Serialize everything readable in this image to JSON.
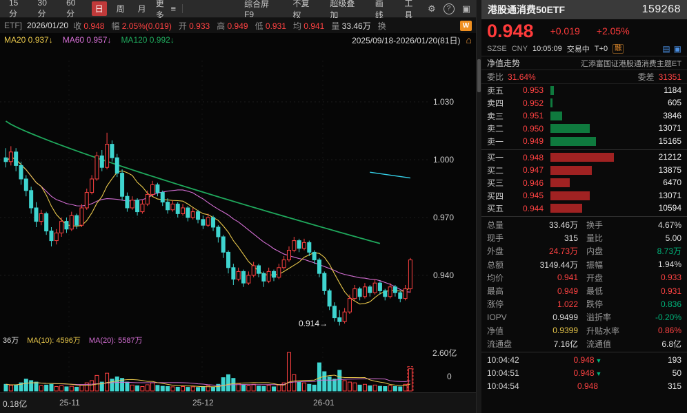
{
  "colors": {
    "up": "#ff4242",
    "down": "#3fd4cf",
    "panel_down": "#00b37a",
    "yellow": "#e9c84b",
    "magenta": "#d56fd5",
    "green_line": "#1fa85c",
    "cyan_overlay": "#35d0e8",
    "bar_sell": "#0f7a3e",
    "bar_buy": "#a02222"
  },
  "toolbar": {
    "period_tabs": [
      {
        "label": "15分",
        "active": false
      },
      {
        "label": "30分",
        "active": false
      },
      {
        "label": "60分",
        "active": false
      },
      {
        "label": "日",
        "active": true
      },
      {
        "label": "周",
        "active": false
      },
      {
        "label": "月",
        "active": false
      }
    ],
    "more_label": "更多",
    "menu_items": [
      "综合屏 F9",
      "不复权",
      "超级叠加",
      "画线",
      "工具"
    ]
  },
  "price_line": {
    "prefix": "ETF]",
    "date": "2026/01/20",
    "fields": [
      {
        "label": "收",
        "value": "0.948",
        "cls": "up"
      },
      {
        "label": "幅",
        "value": "2.05%(0.019)",
        "cls": "up"
      },
      {
        "label": "开",
        "value": "0.933",
        "cls": "up"
      },
      {
        "label": "高",
        "value": "0.949",
        "cls": "up"
      },
      {
        "label": "低",
        "value": "0.931",
        "cls": "up"
      },
      {
        "label": "均",
        "value": "0.941",
        "cls": "up"
      },
      {
        "label": "量",
        "value": "33.46万",
        "cls": "flat"
      },
      {
        "label": "换",
        "value": "",
        "cls": "flat"
      }
    ],
    "wp_badge": "W"
  },
  "ma_line": {
    "items": [
      {
        "label": "MA20",
        "value": "0.937↓",
        "color": "#e9c84b"
      },
      {
        "label": "MA60",
        "value": "0.957↓",
        "color": "#d56fd5"
      },
      {
        "label": "MA120",
        "value": "0.992↓",
        "color": "#1fa85c"
      }
    ],
    "range": "2025/09/18-2026/01/20(81日)"
  },
  "chart_data": {
    "type": "candlestick",
    "symbol": "港股通消费50ETF 159268",
    "date_range": "2025/09/18-2026/01/20",
    "num_days": 81,
    "y_ticks": [
      1.03,
      1.0,
      0.97,
      0.94
    ],
    "low_label": "0.914→",
    "candles": [
      [
        1.001,
        1.006,
        0.996,
        0.999
      ],
      [
        0.999,
        1.007,
        0.997,
        1.004
      ],
      [
        1.004,
        1.006,
        0.994,
        0.997
      ],
      [
        0.997,
        0.999,
        0.987,
        0.99
      ],
      [
        0.99,
        0.992,
        0.981,
        0.984
      ],
      [
        0.984,
        0.986,
        0.972,
        0.975
      ],
      [
        0.975,
        0.978,
        0.965,
        0.968
      ],
      [
        0.968,
        0.974,
        0.966,
        0.972
      ],
      [
        0.972,
        0.973,
        0.961,
        0.963
      ],
      [
        0.963,
        0.965,
        0.955,
        0.958
      ],
      [
        0.958,
        0.964,
        0.956,
        0.962
      ],
      [
        0.962,
        0.97,
        0.96,
        0.968
      ],
      [
        0.968,
        0.97,
        0.962,
        0.964
      ],
      [
        0.964,
        0.973,
        0.963,
        0.971
      ],
      [
        0.971,
        0.972,
        0.964,
        0.966
      ],
      [
        0.966,
        0.977,
        0.965,
        0.975
      ],
      [
        0.975,
        0.985,
        0.974,
        0.983
      ],
      [
        0.983,
        0.992,
        0.982,
        0.99
      ],
      [
        0.99,
        1.004,
        0.989,
        1.002
      ],
      [
        1.002,
        1.005,
        0.994,
        0.996
      ],
      [
        0.996,
        1.014,
        0.995,
        1.008
      ],
      [
        1.008,
        1.01,
        0.999,
        1.001
      ],
      [
        1.001,
        1.003,
        0.991,
        0.993
      ],
      [
        0.993,
        0.995,
        0.979,
        0.981
      ],
      [
        0.981,
        0.983,
        0.973,
        0.975
      ],
      [
        0.975,
        0.981,
        0.974,
        0.979
      ],
      [
        0.979,
        0.98,
        0.971,
        0.973
      ],
      [
        0.973,
        0.979,
        0.972,
        0.977
      ],
      [
        0.977,
        0.984,
        0.976,
        0.982
      ],
      [
        0.982,
        0.989,
        0.981,
        0.987
      ],
      [
        0.987,
        0.988,
        0.981,
        0.983
      ],
      [
        0.983,
        0.984,
        0.976,
        0.978
      ],
      [
        0.978,
        0.98,
        0.972,
        0.974
      ],
      [
        0.974,
        0.979,
        0.973,
        0.977
      ],
      [
        0.977,
        0.978,
        0.97,
        0.972
      ],
      [
        0.972,
        0.977,
        0.971,
        0.975
      ],
      [
        0.975,
        0.976,
        0.968,
        0.97
      ],
      [
        0.97,
        0.975,
        0.969,
        0.973
      ],
      [
        0.973,
        0.974,
        0.967,
        0.969
      ],
      [
        0.969,
        0.971,
        0.964,
        0.966
      ],
      [
        0.966,
        0.972,
        0.965,
        0.97
      ],
      [
        0.97,
        0.971,
        0.963,
        0.965
      ],
      [
        0.965,
        0.966,
        0.957,
        0.96
      ],
      [
        0.96,
        0.961,
        0.949,
        0.952
      ],
      [
        0.952,
        0.953,
        0.941,
        0.944
      ],
      [
        0.944,
        0.946,
        0.935,
        0.938
      ],
      [
        0.938,
        0.944,
        0.937,
        0.942
      ],
      [
        0.942,
        0.943,
        0.934,
        0.936
      ],
      [
        0.936,
        0.942,
        0.935,
        0.94
      ],
      [
        0.94,
        0.947,
        0.939,
        0.945
      ],
      [
        0.945,
        0.946,
        0.939,
        0.941
      ],
      [
        0.941,
        0.942,
        0.934,
        0.937
      ],
      [
        0.937,
        0.944,
        0.936,
        0.942
      ],
      [
        0.942,
        0.943,
        0.937,
        0.939
      ],
      [
        0.939,
        0.946,
        0.938,
        0.944
      ],
      [
        0.944,
        0.95,
        0.943,
        0.948
      ],
      [
        0.948,
        0.955,
        0.947,
        0.953
      ],
      [
        0.953,
        0.96,
        0.952,
        0.958
      ],
      [
        0.958,
        0.959,
        0.952,
        0.954
      ],
      [
        0.954,
        0.959,
        0.953,
        0.957
      ],
      [
        0.957,
        0.958,
        0.95,
        0.952
      ],
      [
        0.952,
        0.953,
        0.946,
        0.948
      ],
      [
        0.948,
        0.949,
        0.939,
        0.941
      ],
      [
        0.941,
        0.942,
        0.93,
        0.932
      ],
      [
        0.932,
        0.933,
        0.922,
        0.924
      ],
      [
        0.924,
        0.926,
        0.916,
        0.918
      ],
      [
        0.918,
        0.922,
        0.914,
        0.916
      ],
      [
        0.916,
        0.923,
        0.915,
        0.921
      ],
      [
        0.921,
        0.93,
        0.92,
        0.928
      ],
      [
        0.928,
        0.935,
        0.927,
        0.933
      ],
      [
        0.933,
        0.934,
        0.927,
        0.929
      ],
      [
        0.929,
        0.936,
        0.928,
        0.934
      ],
      [
        0.934,
        0.935,
        0.929,
        0.931
      ],
      [
        0.931,
        0.938,
        0.93,
        0.936
      ],
      [
        0.936,
        0.937,
        0.93,
        0.932
      ],
      [
        0.932,
        0.933,
        0.927,
        0.929
      ],
      [
        0.929,
        0.936,
        0.928,
        0.934
      ],
      [
        0.934,
        0.935,
        0.929,
        0.931
      ],
      [
        0.931,
        0.932,
        0.926,
        0.928
      ],
      [
        0.928,
        0.935,
        0.927,
        0.933
      ],
      [
        0.933,
        0.949,
        0.931,
        0.948
      ]
    ],
    "volumes": [
      0.45,
      0.38,
      0.42,
      0.55,
      0.8,
      0.7,
      0.6,
      0.35,
      0.4,
      0.45,
      0.3,
      0.35,
      0.28,
      0.32,
      0.26,
      0.38,
      0.55,
      0.7,
      1.05,
      0.6,
      1.2,
      0.8,
      0.95,
      0.85,
      0.6,
      0.4,
      0.35,
      0.3,
      0.42,
      0.55,
      0.38,
      0.32,
      0.3,
      0.28,
      0.26,
      0.3,
      0.25,
      0.28,
      0.24,
      0.3,
      0.35,
      0.28,
      0.45,
      0.9,
      1.1,
      0.85,
      0.5,
      0.4,
      0.35,
      0.45,
      0.32,
      0.3,
      0.38,
      0.28,
      0.4,
      0.55,
      2.6,
      1.1,
      0.6,
      0.55,
      0.45,
      0.4,
      1.9,
      1.3,
      0.95,
      0.8,
      1.4,
      0.7,
      0.6,
      0.55,
      0.4,
      0.45,
      0.35,
      0.4,
      0.32,
      0.3,
      0.35,
      0.3,
      0.28,
      0.45,
      1.5
    ],
    "volume_axis": {
      "top": "2.60亿",
      "bottom": "0",
      "left": "0.18亿",
      "max": 2.6
    },
    "volume_header": {
      "left": "36万",
      "ma10": "MA(10): 4596万",
      "ma20": "MA(20): 5587万"
    },
    "x_labels": [
      {
        "label": "25-11",
        "x": 86
      },
      {
        "label": "25-12",
        "x": 279
      },
      {
        "label": "26-01",
        "x": 454
      }
    ],
    "ma120_approx": {
      "start": 1.02,
      "end": 0.9565,
      "days": 75
    },
    "nav_overlay": {
      "d1": 72,
      "p1": 0.9935,
      "d2": 80,
      "p2": 0.9905
    }
  },
  "panel": {
    "title": "港股通消费50ETF",
    "code": "159268",
    "price": "0.948",
    "change": "+0.019",
    "change_pct": "+2.05%",
    "exchange": "SZSE",
    "currency": "CNY",
    "time": "10:05:09",
    "status": "交易中",
    "t0": "T+0",
    "rong": "融",
    "nav_label": "净值走势",
    "fund_name": "汇添富国证港股通消费主题ET",
    "weibi_label": "委比",
    "weibi": "31.64%",
    "weicha_label": "委差",
    "weicha": "31351",
    "max_vol": 21212,
    "asks": [
      {
        "label": "卖五",
        "price": "0.953",
        "vol": 1184
      },
      {
        "label": "卖四",
        "price": "0.952",
        "vol": 605
      },
      {
        "label": "卖三",
        "price": "0.951",
        "vol": 3846
      },
      {
        "label": "卖二",
        "price": "0.950",
        "vol": 13071
      },
      {
        "label": "卖一",
        "price": "0.949",
        "vol": 15165
      }
    ],
    "bids": [
      {
        "label": "买一",
        "price": "0.948",
        "vol": 21212
      },
      {
        "label": "买二",
        "price": "0.947",
        "vol": 13875
      },
      {
        "label": "买三",
        "price": "0.946",
        "vol": 6470
      },
      {
        "label": "买四",
        "price": "0.945",
        "vol": 13071
      },
      {
        "label": "买五",
        "price": "0.944",
        "vol": 10594
      }
    ],
    "stats": [
      [
        {
          "label": "总量",
          "value": "33.46万",
          "cls": "flat"
        },
        {
          "label": "换手",
          "value": "4.67%",
          "cls": "flat"
        }
      ],
      [
        {
          "label": "现手",
          "value": "315",
          "cls": "flat"
        },
        {
          "label": "量比",
          "value": "5.00",
          "cls": "flat"
        }
      ],
      [
        {
          "label": "外盘",
          "value": "24.73万",
          "cls": "up"
        },
        {
          "label": "内盘",
          "value": "8.73万",
          "cls": "dncol"
        }
      ],
      [
        {
          "label": "总额",
          "value": "3149.44万",
          "cls": "flat"
        },
        {
          "label": "振幅",
          "value": "1.94%",
          "cls": "flat"
        }
      ],
      [
        {
          "label": "均价",
          "value": "0.941",
          "cls": "up"
        },
        {
          "label": "开盘",
          "value": "0.933",
          "cls": "up"
        }
      ],
      [
        {
          "label": "最高",
          "value": "0.949",
          "cls": "up"
        },
        {
          "label": "最低",
          "value": "0.931",
          "cls": "up"
        }
      ],
      [
        {
          "label": "涨停",
          "value": "1.022",
          "cls": "up"
        },
        {
          "label": "跌停",
          "value": "0.836",
          "cls": "dncol"
        }
      ],
      [
        {
          "label": "IOPV",
          "value": "0.9499",
          "cls": "flat"
        },
        {
          "label": "溢折率",
          "value": "-0.20%",
          "cls": "dncol"
        }
      ],
      [
        {
          "label": "净值",
          "value": "0.9399",
          "cls": "nav"
        },
        {
          "label": "升贴水率",
          "value": "0.86%",
          "cls": "up"
        }
      ],
      [
        {
          "label": "流通盘",
          "value": "7.16亿",
          "cls": "flat"
        },
        {
          "label": "流通值",
          "value": "6.8亿",
          "cls": "flat"
        }
      ]
    ],
    "ticks": [
      {
        "time": "10:04:42",
        "price": "0.948",
        "dir": "down",
        "vol": "193"
      },
      {
        "time": "10:04:51",
        "price": "0.948",
        "dir": "down",
        "vol": "50"
      },
      {
        "time": "10:04:54",
        "price": "0.948",
        "dir": "",
        "vol": "315"
      }
    ]
  }
}
